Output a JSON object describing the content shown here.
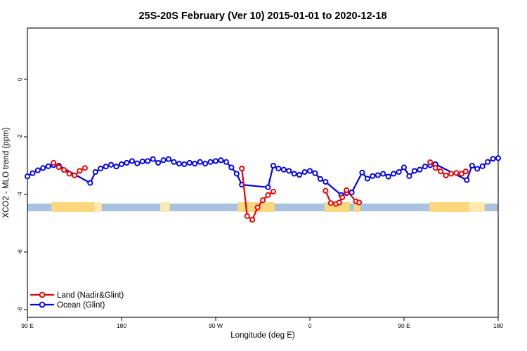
{
  "chart_data": {
    "type": "line",
    "title": "25S-20S February (Ver 10)   2015-01-01 to 2020-12-18",
    "xlabel": "Longitude (deg E)",
    "ylabel": "XCO2 - MLO trend (ppm)",
    "x_axis": {
      "range": [
        90,
        540
      ],
      "note": "longitude wraps eastward: 90E -> 180 -> 90W -> 0 -> 90E -> 180",
      "ticks": [
        {
          "pos": 90,
          "label": "90 E"
        },
        {
          "pos": 180,
          "label": "180"
        },
        {
          "pos": 270,
          "label": "90 W"
        },
        {
          "pos": 360,
          "label": "0"
        },
        {
          "pos": 450,
          "label": "90 E"
        },
        {
          "pos": 540,
          "label": "180"
        }
      ]
    },
    "y_axis": {
      "unit": "ppm",
      "ticks": [
        {
          "val": 0,
          "label": "0"
        },
        {
          "val": -2,
          "label": "-2"
        },
        {
          "val": -4,
          "label": "-4"
        },
        {
          "val": -6,
          "label": "-6"
        },
        {
          "val": -8,
          "label": "-8"
        }
      ]
    },
    "series": [
      {
        "name": "Ocean (Glint)",
        "color": "#0000ee",
        "marker": "open-circle",
        "segments": [
          [
            [
              90,
              -3.37
            ],
            [
              95,
              -3.26
            ],
            [
              100,
              -3.16
            ],
            [
              105,
              -3.08
            ],
            [
              110,
              -3.02
            ],
            [
              115,
              -2.98
            ],
            [
              120,
              -3.0
            ],
            [
              150,
              -3.6
            ],
            [
              155,
              -3.22
            ],
            [
              160,
              -3.1
            ],
            [
              165,
              -3.03
            ],
            [
              170,
              -2.97
            ],
            [
              175,
              -3.03
            ],
            [
              180,
              -2.95
            ],
            [
              185,
              -2.9
            ],
            [
              190,
              -2.84
            ],
            [
              195,
              -2.92
            ],
            [
              200,
              -2.85
            ],
            [
              205,
              -2.84
            ],
            [
              210,
              -2.77
            ],
            [
              215,
              -2.9
            ],
            [
              220,
              -2.81
            ],
            [
              225,
              -2.77
            ],
            [
              230,
              -2.87
            ],
            [
              235,
              -2.93
            ],
            [
              240,
              -2.95
            ],
            [
              245,
              -2.9
            ],
            [
              250,
              -2.93
            ],
            [
              255,
              -2.87
            ],
            [
              260,
              -2.93
            ],
            [
              265,
              -2.87
            ],
            [
              270,
              -2.84
            ],
            [
              275,
              -2.81
            ],
            [
              280,
              -2.87
            ],
            [
              285,
              -3.06
            ],
            [
              290,
              -3.28
            ],
            [
              295,
              -3.66
            ],
            [
              320,
              -3.75
            ],
            [
              325,
              -3.0
            ],
            [
              330,
              -3.1
            ],
            [
              335,
              -3.14
            ],
            [
              340,
              -3.18
            ],
            [
              345,
              -3.28
            ],
            [
              350,
              -3.32
            ],
            [
              355,
              -3.22
            ],
            [
              360,
              -3.18
            ],
            [
              365,
              -3.26
            ],
            [
              370,
              -3.46
            ],
            [
              375,
              -3.56
            ],
            [
              390,
              -4.02
            ],
            [
              395,
              -3.95
            ],
            [
              400,
              -3.93
            ],
            [
              410,
              -3.24
            ],
            [
              415,
              -3.45
            ],
            [
              420,
              -3.36
            ],
            [
              425,
              -3.33
            ],
            [
              430,
              -3.28
            ],
            [
              435,
              -3.38
            ],
            [
              440,
              -3.28
            ],
            [
              445,
              -3.22
            ],
            [
              450,
              -3.06
            ],
            [
              455,
              -3.36
            ],
            [
              460,
              -3.18
            ],
            [
              465,
              -3.14
            ],
            [
              470,
              -3.03
            ],
            [
              475,
              -2.98
            ],
            [
              480,
              -2.95
            ],
            [
              510,
              -3.5
            ],
            [
              515,
              -3.0
            ],
            [
              520,
              -3.11
            ],
            [
              525,
              -3.02
            ],
            [
              530,
              -2.87
            ],
            [
              535,
              -2.76
            ],
            [
              540,
              -2.74
            ]
          ]
        ]
      },
      {
        "name": "Land (Nadir&Glint)",
        "color": "#ee0000",
        "marker": "open-circle",
        "segments": [
          [
            [
              115,
              -2.9
            ],
            [
              120,
              -3.05
            ],
            [
              125,
              -3.15
            ],
            [
              130,
              -3.28
            ],
            [
              135,
              -3.34
            ],
            [
              140,
              -3.18
            ],
            [
              145,
              -3.08
            ]
          ],
          [
            [
              295,
              -3.1
            ],
            [
              300,
              -4.75
            ],
            [
              305,
              -4.88
            ],
            [
              310,
              -4.45
            ],
            [
              315,
              -4.2
            ],
            [
              320,
              -4.02
            ],
            [
              325,
              -3.9
            ]
          ],
          [
            [
              375,
              -3.87
            ],
            [
              380,
              -4.3
            ],
            [
              385,
              -4.33
            ],
            [
              388,
              -4.28
            ],
            [
              391,
              -4.1
            ],
            [
              395,
              -3.85
            ],
            [
              404,
              -4.24
            ],
            [
              407,
              -4.28
            ]
          ],
          [
            [
              475,
              -2.88
            ],
            [
              480,
              -3.08
            ],
            [
              485,
              -3.2
            ],
            [
              490,
              -3.34
            ],
            [
              495,
              -3.28
            ],
            [
              500,
              -3.25
            ],
            [
              505,
              -3.28
            ],
            [
              509,
              -3.2
            ]
          ]
        ]
      }
    ],
    "surface_band": {
      "description": "land/ocean mask strip near -4.45 ppm",
      "value_center": -4.45,
      "ocean_color": "#a9c2e0",
      "land_color": "#fcd77e",
      "land_faint_color": "#fdeab0",
      "patches": [
        {
          "from": 113,
          "to": 154
        },
        {
          "from": 154,
          "to": 161,
          "faint": true
        },
        {
          "from": 217,
          "to": 226,
          "faint": true
        },
        {
          "from": 291,
          "to": 326
        },
        {
          "from": 374,
          "to": 398
        },
        {
          "from": 402,
          "to": 408
        },
        {
          "from": 474,
          "to": 512
        },
        {
          "from": 512,
          "to": 527,
          "faint": true
        }
      ]
    },
    "legend": {
      "position": "bottom-left",
      "items": [
        {
          "label": "Land (Nadir&Glint)",
          "color": "#ee0000"
        },
        {
          "label": "Ocean (Glint)",
          "color": "#0000ee"
        }
      ]
    },
    "frame_color": "#2a2a2a"
  }
}
